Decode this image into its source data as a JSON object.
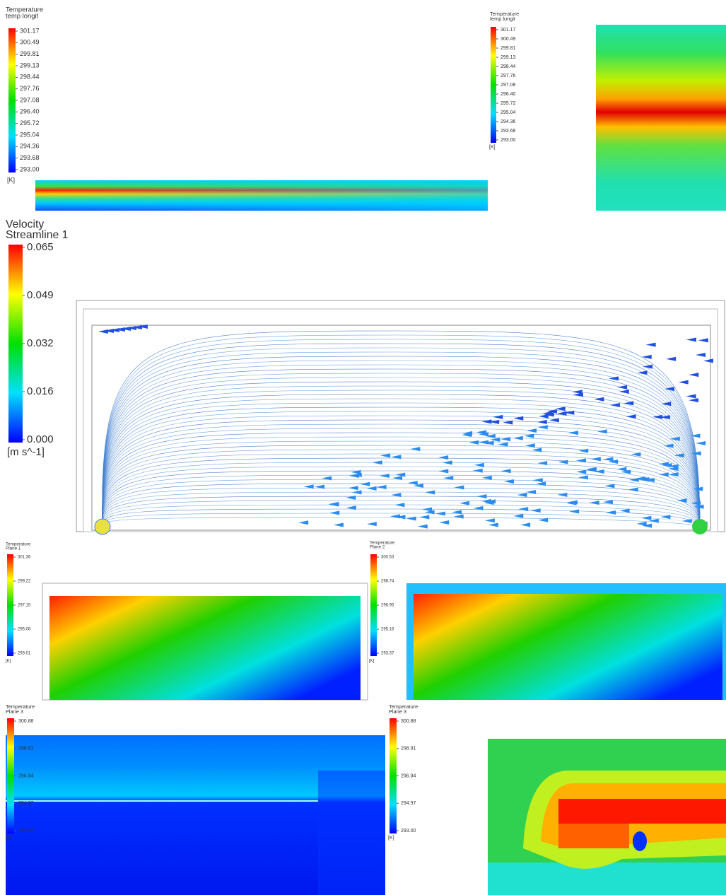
{
  "panels": [
    {
      "legend": {
        "title": "Temperature",
        "subtitle": "temp longit",
        "ticks": [
          "301.17",
          "300.49",
          "299.81",
          "299.13",
          "298.44",
          "297.76",
          "297.08",
          "296.40",
          "295.72",
          "295.04",
          "294.36",
          "293.68",
          "293.00"
        ],
        "unit": "[K]"
      }
    },
    {
      "legend": {
        "title": "Temperature",
        "subtitle": "temp longit",
        "ticks": [
          "301.17",
          "300.49",
          "299.81",
          "299.13",
          "298.44",
          "297.76",
          "297.08",
          "296.40",
          "295.72",
          "295.04",
          "294.36",
          "293.68",
          "293.00"
        ],
        "unit": "[K]"
      }
    },
    {
      "legend": {
        "title": "Velocity",
        "subtitle": "Streamline 1",
        "ticks": [
          "0.065",
          "0.049",
          "0.032",
          "0.016",
          "0.000"
        ],
        "unit": "[m s^-1]"
      }
    },
    {
      "legend": {
        "title": "Temperature",
        "subtitle": "Plane 1",
        "ticks": [
          "301.36",
          "299.22",
          "297.15",
          "295.08",
          "293.01"
        ],
        "unit": "[K]"
      }
    },
    {
      "legend": {
        "title": "Temperature",
        "subtitle": "Plane 2",
        "ticks": [
          "300.53",
          "298.74",
          "296.95",
          "295.16",
          "293.37"
        ],
        "unit": "[K]"
      }
    },
    {
      "legend": {
        "title": "Temperature",
        "subtitle": "Plane 3",
        "ticks": [
          "300.88",
          "298.91",
          "296.94",
          "294.97",
          "293.00"
        ],
        "unit": "[K]"
      }
    },
    {
      "legend": {
        "title": "Temperature",
        "subtitle": "Plane 3",
        "ticks": [
          "300.88",
          "298.91",
          "296.94",
          "294.97",
          "293.00"
        ],
        "unit": "[K]"
      }
    }
  ]
}
